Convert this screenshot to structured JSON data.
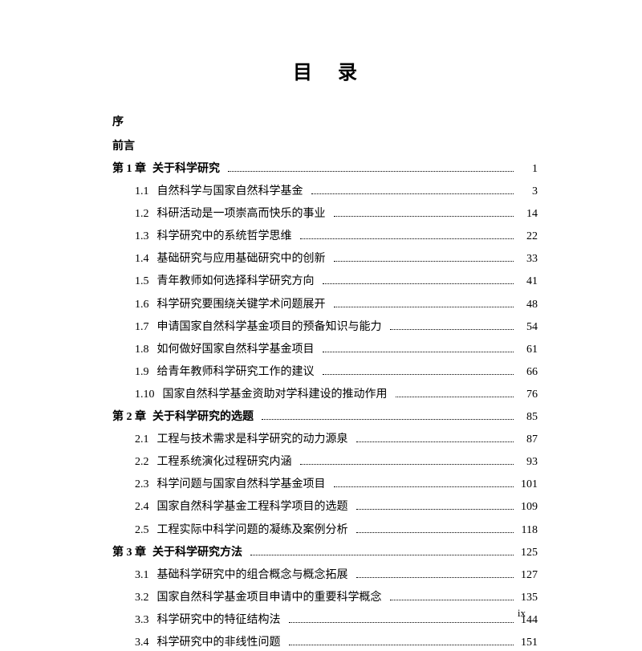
{
  "title": "目录",
  "preface_lines": [
    "序",
    "前言"
  ],
  "footer": "ix",
  "entries": [
    {
      "type": "chapter",
      "num": "第 1 章",
      "title": "关于科学研究",
      "page": "1"
    },
    {
      "type": "section",
      "num": "1.1",
      "title": "自然科学与国家自然科学基金",
      "page": "3"
    },
    {
      "type": "section",
      "num": "1.2",
      "title": "科研活动是一项崇高而快乐的事业",
      "page": "14"
    },
    {
      "type": "section",
      "num": "1.3",
      "title": "科学研究中的系统哲学思维",
      "page": "22"
    },
    {
      "type": "section",
      "num": "1.4",
      "title": "基础研究与应用基础研究中的创新",
      "page": "33"
    },
    {
      "type": "section",
      "num": "1.5",
      "title": "青年教师如何选择科学研究方向",
      "page": "41"
    },
    {
      "type": "section",
      "num": "1.6",
      "title": "科学研究要围绕关键学术问题展开",
      "page": "48"
    },
    {
      "type": "section",
      "num": "1.7",
      "title": "申请国家自然科学基金项目的预备知识与能力",
      "page": "54"
    },
    {
      "type": "section",
      "num": "1.8",
      "title": "如何做好国家自然科学基金项目",
      "page": "61"
    },
    {
      "type": "section",
      "num": "1.9",
      "title": "给青年教师科学研究工作的建议",
      "page": "66"
    },
    {
      "type": "section",
      "num": "1.10",
      "title": "国家自然科学基金资助对学科建设的推动作用",
      "page": "76"
    },
    {
      "type": "chapter",
      "num": "第 2 章",
      "title": "关于科学研究的选题",
      "page": "85"
    },
    {
      "type": "section",
      "num": "2.1",
      "title": "工程与技术需求是科学研究的动力源泉",
      "page": "87"
    },
    {
      "type": "section",
      "num": "2.2",
      "title": "工程系统演化过程研究内涵",
      "page": "93"
    },
    {
      "type": "section",
      "num": "2.3",
      "title": "科学问题与国家自然科学基金项目",
      "page": "101"
    },
    {
      "type": "section",
      "num": "2.4",
      "title": "国家自然科学基金工程科学项目的选题",
      "page": "109"
    },
    {
      "type": "section",
      "num": "2.5",
      "title": "工程实际中科学问题的凝练及案例分析",
      "page": "118"
    },
    {
      "type": "chapter",
      "num": "第 3 章",
      "title": "关于科学研究方法",
      "page": "125"
    },
    {
      "type": "section",
      "num": "3.1",
      "title": "基础科学研究中的组合概念与概念拓展",
      "page": "127"
    },
    {
      "type": "section",
      "num": "3.2",
      "title": "国家自然科学基金项目申请中的重要科学概念",
      "page": "135"
    },
    {
      "type": "section",
      "num": "3.3",
      "title": "科学研究中的特征结构法",
      "page": "144"
    },
    {
      "type": "section",
      "num": "3.4",
      "title": "科学研究中的非线性问题",
      "page": "151"
    }
  ]
}
